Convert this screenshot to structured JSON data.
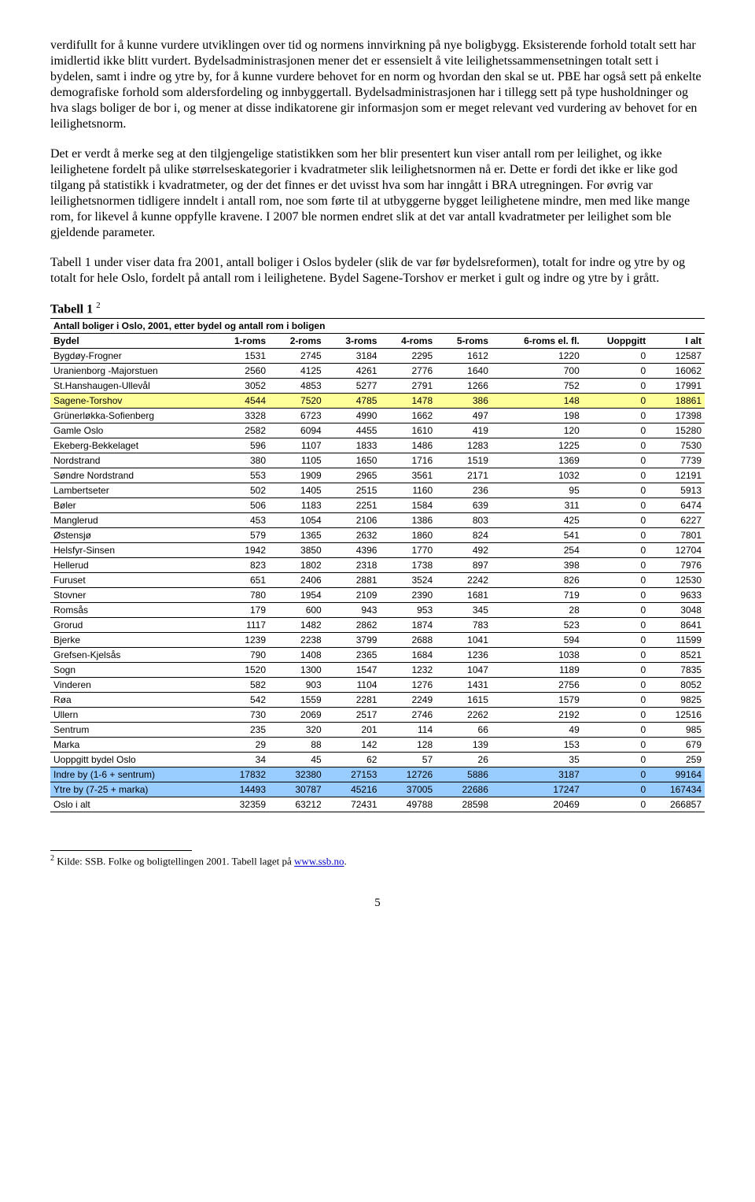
{
  "paragraphs": {
    "p1": "verdifullt for å kunne vurdere utviklingen over tid og normens innvirkning på nye boligbygg. Eksisterende forhold totalt sett har imidlertid ikke blitt vurdert. Bydelsadministrasjonen mener det er essensielt å vite leilighetssammensetningen totalt sett i bydelen, samt i indre og ytre by, for å kunne vurdere behovet for en norm og hvordan den skal se ut. PBE har også sett på enkelte demografiske forhold som aldersfordeling og innbyggertall. Bydelsadministrasjonen har i tillegg sett på type husholdninger og hva slags boliger de bor i, og mener at disse indikatorene gir informasjon som er meget relevant ved vurdering av behovet for en leilighetsnorm.",
    "p2": "Det er verdt å merke seg at den tilgjengelige statistikken som her blir presentert kun viser antall rom per leilighet, og ikke leilighetene fordelt på ulike størrelseskategorier i kvadratmeter slik leilighetsnormen nå er. Dette er fordi det ikke er like god tilgang på statistikk i kvadratmeter, og der det finnes er det uvisst hva som har inngått i BRA utregningen. For øvrig var leilighetsnormen tidligere inndelt i antall rom, noe som førte til at utbyggerne bygget leilighetene mindre, men med like mange rom, for likevel å kunne oppfylle kravene. I 2007 ble normen endret slik at det var antall kvadratmeter per leilighet som ble gjeldende parameter.",
    "p3": "Tabell 1 under viser data fra 2001, antall boliger i Oslos bydeler (slik de var før bydelsreformen), totalt for indre og ytre by og totalt for hele Oslo, fordelt på antall rom i leilighetene. Bydel Sagene-Torshov er merket i gult og indre og ytre by i grått."
  },
  "tableLabel": "Tabell 1",
  "tableFootnoteRef": "2",
  "tableTitle": "Antall boliger i Oslo, 2001, etter bydel og antall rom i boligen",
  "columns": [
    "Bydel",
    "1-roms",
    "2-roms",
    "3-roms",
    "4-roms",
    "5-roms",
    "6-roms el. fl.",
    "Uoppgitt",
    "I alt"
  ],
  "rows": [
    {
      "c": [
        "Bygdøy-Frogner",
        "1531",
        "2745",
        "3184",
        "2295",
        "1612",
        "1220",
        "0",
        "12587"
      ]
    },
    {
      "c": [
        "Uranienborg -Majorstuen",
        "2560",
        "4125",
        "4261",
        "2776",
        "1640",
        "700",
        "0",
        "16062"
      ]
    },
    {
      "c": [
        "St.Hanshaugen-Ullevål",
        "3052",
        "4853",
        "5277",
        "2791",
        "1266",
        "752",
        "0",
        "17991"
      ]
    },
    {
      "c": [
        "Sagene-Torshov",
        "4544",
        "7520",
        "4785",
        "1478",
        "386",
        "148",
        "0",
        "18861"
      ],
      "hl": "yellow"
    },
    {
      "c": [
        "Grünerløkka-Sofienberg",
        "3328",
        "6723",
        "4990",
        "1662",
        "497",
        "198",
        "0",
        "17398"
      ]
    },
    {
      "c": [
        "Gamle Oslo",
        "2582",
        "6094",
        "4455",
        "1610",
        "419",
        "120",
        "0",
        "15280"
      ]
    },
    {
      "c": [
        "Ekeberg-Bekkelaget",
        "596",
        "1107",
        "1833",
        "1486",
        "1283",
        "1225",
        "0",
        "7530"
      ]
    },
    {
      "c": [
        "Nordstrand",
        "380",
        "1105",
        "1650",
        "1716",
        "1519",
        "1369",
        "0",
        "7739"
      ]
    },
    {
      "c": [
        "Søndre Nordstrand",
        "553",
        "1909",
        "2965",
        "3561",
        "2171",
        "1032",
        "0",
        "12191"
      ]
    },
    {
      "c": [
        "Lambertseter",
        "502",
        "1405",
        "2515",
        "1160",
        "236",
        "95",
        "0",
        "5913"
      ]
    },
    {
      "c": [
        "Bøler",
        "506",
        "1183",
        "2251",
        "1584",
        "639",
        "311",
        "0",
        "6474"
      ]
    },
    {
      "c": [
        "Manglerud",
        "453",
        "1054",
        "2106",
        "1386",
        "803",
        "425",
        "0",
        "6227"
      ]
    },
    {
      "c": [
        "Østensjø",
        "579",
        "1365",
        "2632",
        "1860",
        "824",
        "541",
        "0",
        "7801"
      ]
    },
    {
      "c": [
        "Helsfyr-Sinsen",
        "1942",
        "3850",
        "4396",
        "1770",
        "492",
        "254",
        "0",
        "12704"
      ]
    },
    {
      "c": [
        "Hellerud",
        "823",
        "1802",
        "2318",
        "1738",
        "897",
        "398",
        "0",
        "7976"
      ]
    },
    {
      "c": [
        "Furuset",
        "651",
        "2406",
        "2881",
        "3524",
        "2242",
        "826",
        "0",
        "12530"
      ]
    },
    {
      "c": [
        "Stovner",
        "780",
        "1954",
        "2109",
        "2390",
        "1681",
        "719",
        "0",
        "9633"
      ]
    },
    {
      "c": [
        "Romsås",
        "179",
        "600",
        "943",
        "953",
        "345",
        "28",
        "0",
        "3048"
      ]
    },
    {
      "c": [
        "Grorud",
        "1117",
        "1482",
        "2862",
        "1874",
        "783",
        "523",
        "0",
        "8641"
      ]
    },
    {
      "c": [
        "Bjerke",
        "1239",
        "2238",
        "3799",
        "2688",
        "1041",
        "594",
        "0",
        "11599"
      ]
    },
    {
      "c": [
        "Grefsen-Kjelsås",
        "790",
        "1408",
        "2365",
        "1684",
        "1236",
        "1038",
        "0",
        "8521"
      ]
    },
    {
      "c": [
        "Sogn",
        "1520",
        "1300",
        "1547",
        "1232",
        "1047",
        "1189",
        "0",
        "7835"
      ]
    },
    {
      "c": [
        "Vinderen",
        "582",
        "903",
        "1104",
        "1276",
        "1431",
        "2756",
        "0",
        "8052"
      ]
    },
    {
      "c": [
        "Røa",
        "542",
        "1559",
        "2281",
        "2249",
        "1615",
        "1579",
        "0",
        "9825"
      ]
    },
    {
      "c": [
        "Ullern",
        "730",
        "2069",
        "2517",
        "2746",
        "2262",
        "2192",
        "0",
        "12516"
      ]
    },
    {
      "c": [
        "Sentrum",
        "235",
        "320",
        "201",
        "114",
        "66",
        "49",
        "0",
        "985"
      ]
    },
    {
      "c": [
        "Marka",
        "29",
        "88",
        "142",
        "128",
        "139",
        "153",
        "0",
        "679"
      ]
    },
    {
      "c": [
        "Uoppgitt bydel Oslo",
        "34",
        "45",
        "62",
        "57",
        "26",
        "35",
        "0",
        "259"
      ]
    },
    {
      "c": [
        "Indre by (1-6 + sentrum)",
        "17832",
        "32380",
        "27153",
        "12726",
        "5886",
        "3187",
        "0",
        "99164"
      ],
      "hl": "blue"
    },
    {
      "c": [
        "Ytre by (7-25 + marka)",
        "14493",
        "30787",
        "45216",
        "37005",
        "22686",
        "17247",
        "0",
        "167434"
      ],
      "hl": "blue"
    },
    {
      "c": [
        "Oslo i alt",
        "32359",
        "63212",
        "72431",
        "49788",
        "28598",
        "20469",
        "0",
        "266857"
      ],
      "last": true
    }
  ],
  "footnote": {
    "num": "2",
    "textBefore": " Kilde: SSB. Folke og boligtellingen 2001. Tabell laget på ",
    "linkText": "www.ssb.no",
    "textAfter": "."
  },
  "pageNumber": "5"
}
